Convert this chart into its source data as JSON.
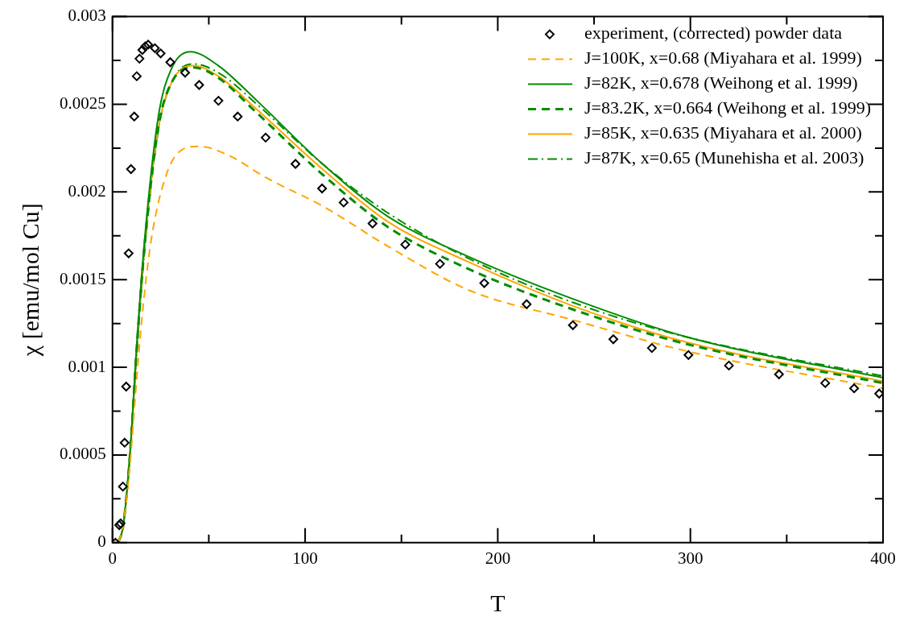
{
  "chart_data": {
    "type": "line",
    "xlabel": "T",
    "ylabel": "χ [emu/mol Cu]",
    "xlim": [
      0,
      400
    ],
    "ylim": [
      0,
      0.003
    ],
    "xticks": [
      0,
      {
        "value": 50,
        "label": null
      },
      100,
      {
        "value": 150,
        "label": null
      },
      200,
      {
        "value": 250,
        "label": null
      },
      300,
      {
        "value": 350,
        "label": null
      },
      400
    ],
    "yticks": [
      0,
      {
        "value": 0.00025,
        "label": null
      },
      0.0005,
      {
        "value": 0.00075,
        "label": null
      },
      0.001,
      {
        "value": 0.00125,
        "label": null
      },
      0.0015,
      {
        "value": 0.00175,
        "label": null
      },
      0.002,
      {
        "value": 0.00225,
        "label": null
      },
      0.0025,
      {
        "value": 0.00275,
        "label": null
      },
      0.003
    ],
    "grid": false,
    "legend": "top right",
    "series": [
      {
        "name": "experiment, (corrected) powder data",
        "type": "scatter",
        "marker": "diamond",
        "color": "#000000",
        "x": [
          1.5,
          3.5,
          4.2,
          5.4,
          6.3,
          7.1,
          8.4,
          9.6,
          11.3,
          12.6,
          14,
          15.5,
          17,
          18.5,
          22,
          25,
          30,
          37.7,
          45,
          55,
          65,
          79.5,
          95,
          108.8,
          120,
          135,
          152,
          170,
          193,
          215,
          239,
          260,
          280,
          299,
          320,
          346,
          370,
          385,
          398
        ],
        "values": [
          0,
          0.0001,
          0.00011,
          0.00032,
          0.00057,
          0.00089,
          0.00165,
          0.00213,
          0.00243,
          0.00266,
          0.00276,
          0.00281,
          0.00283,
          0.00284,
          0.00282,
          0.00279,
          0.00274,
          0.00268,
          0.00261,
          0.00252,
          0.00243,
          0.00231,
          0.00216,
          0.00202,
          0.00194,
          0.00182,
          0.0017,
          0.00159,
          0.00148,
          0.00136,
          0.00124,
          0.00116,
          0.00111,
          0.00107,
          0.00101,
          0.00096,
          0.00091,
          0.00088,
          0.00085
        ]
      },
      {
        "name": "J=100K, x=0.68 (Miyahara et al. 1999)",
        "line_style": "dashed",
        "color": "#ffa500",
        "x": [
          3,
          5.6,
          9.2,
          11.8,
          15.3,
          20,
          28,
          36,
          45,
          60,
          80,
          109,
          143,
          185,
          239,
          299,
          400
        ],
        "values": [
          0,
          0.0001,
          0.00046,
          0.00083,
          0.00128,
          0.00172,
          0.0021,
          0.00224,
          0.00226,
          0.00221,
          0.00208,
          0.00192,
          0.00169,
          0.00144,
          0.00127,
          0.00109,
          0.00088
        ]
      },
      {
        "name": "J=82K, x=0.678 (Weihong et al. 1999)",
        "line_style": "solid",
        "color": "#008c00",
        "x": [
          3,
          5.6,
          9.2,
          12.6,
          16.7,
          23.8,
          30.5,
          40.5,
          55,
          75,
          109,
          143,
          185,
          239,
          299,
          400
        ],
        "values": [
          0,
          0.0001,
          0.00053,
          0.00113,
          0.00173,
          0.00243,
          0.0027,
          0.0028,
          0.00272,
          0.00252,
          0.00216,
          0.00186,
          0.00163,
          0.00139,
          0.00117,
          0.00094
        ]
      },
      {
        "name": "J=83.2K, x=0.664 (Weihong et al. 1999)",
        "line_style": "dashed",
        "color": "#008c00",
        "x": [
          3,
          5.6,
          9.2,
          12.6,
          16.7,
          23.8,
          30.5,
          42,
          55,
          75,
          109,
          143,
          185,
          239,
          299,
          400
        ],
        "values": [
          0,
          0.0001,
          0.00052,
          0.00111,
          0.0017,
          0.00237,
          0.00262,
          0.00271,
          0.00265,
          0.00245,
          0.0021,
          0.0018,
          0.00156,
          0.00133,
          0.00113,
          0.00091
        ]
      },
      {
        "name": "J=85K, x=0.635 (Miyahara et al. 2000)",
        "line_style": "solid",
        "color": "#ffa500",
        "x": [
          3,
          5.6,
          9.2,
          12.6,
          16.7,
          23.8,
          30.5,
          41.8,
          55,
          75,
          109,
          143,
          185,
          239,
          299,
          400
        ],
        "values": [
          0,
          0.0001,
          0.00051,
          0.0011,
          0.00169,
          0.00236,
          0.00262,
          0.00272,
          0.00266,
          0.00247,
          0.00213,
          0.00183,
          0.0016,
          0.00135,
          0.00114,
          0.00092
        ]
      },
      {
        "name": "J=87K, x=0.65 (Munehisha et al. 2003)",
        "line_style": "dashdot",
        "color": "#008c00",
        "x": [
          3,
          5.6,
          9.2,
          12.6,
          16.7,
          23.8,
          30.5,
          42,
          55,
          75,
          109,
          143,
          185,
          239,
          299,
          400
        ],
        "values": [
          0,
          0.0001,
          0.0005,
          0.00108,
          0.00167,
          0.00235,
          0.00262,
          0.00273,
          0.00268,
          0.0025,
          0.00216,
          0.00188,
          0.00162,
          0.00137,
          0.00117,
          0.00095
        ]
      }
    ]
  }
}
